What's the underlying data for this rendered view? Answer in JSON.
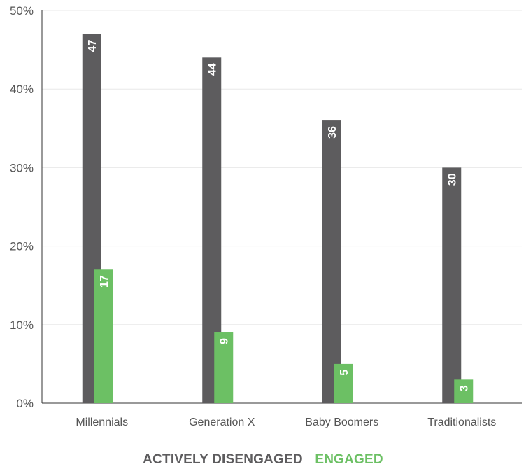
{
  "colors": {
    "disengaged": "#5d5c5e",
    "engaged": "#6cc064",
    "grid": "#e8e8e8",
    "axis": "#333333"
  },
  "legend": {
    "disengaged_label": "ACTIVELY DISENGAGED",
    "engaged_label": "ENGAGED"
  },
  "chart_data": {
    "type": "bar",
    "categories": [
      "Millennials",
      "Generation X",
      "Baby Boomers",
      "Traditionalists"
    ],
    "series": [
      {
        "name": "ACTIVELY DISENGAGED",
        "values": [
          47,
          44,
          36,
          30
        ]
      },
      {
        "name": "ENGAGED",
        "values": [
          17,
          9,
          5,
          3
        ]
      }
    ],
    "yticks": [
      "0%",
      "10%",
      "20%",
      "30%",
      "40%",
      "50%"
    ],
    "ylim": [
      0,
      50
    ],
    "grid": true,
    "legend_position": "bottom"
  }
}
